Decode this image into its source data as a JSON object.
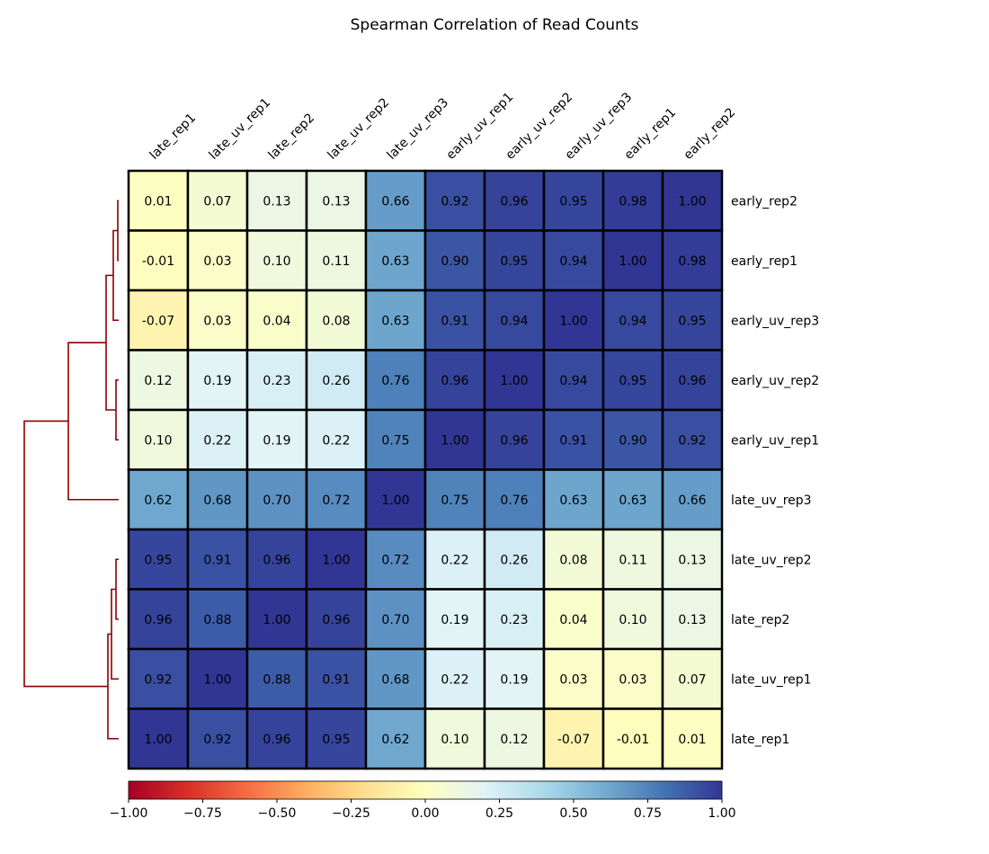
{
  "chart_data": {
    "type": "heatmap",
    "title": "Spearman Correlation of Read Counts",
    "columns": [
      "late_rep1",
      "late_uv_rep1",
      "late_rep2",
      "late_uv_rep2",
      "late_uv_rep3",
      "early_uv_rep1",
      "early_uv_rep2",
      "early_uv_rep3",
      "early_rep1",
      "early_rep2"
    ],
    "rows": [
      "early_rep2",
      "early_rep1",
      "early_uv_rep3",
      "early_uv_rep2",
      "early_uv_rep1",
      "late_uv_rep3",
      "late_uv_rep2",
      "late_rep2",
      "late_uv_rep1",
      "late_rep1"
    ],
    "values": [
      [
        0.01,
        0.07,
        0.13,
        0.13,
        0.66,
        0.92,
        0.96,
        0.95,
        0.98,
        1.0
      ],
      [
        -0.01,
        0.03,
        0.1,
        0.11,
        0.63,
        0.9,
        0.95,
        0.94,
        1.0,
        0.98
      ],
      [
        -0.07,
        0.03,
        0.04,
        0.08,
        0.63,
        0.91,
        0.94,
        1.0,
        0.94,
        0.95
      ],
      [
        0.12,
        0.19,
        0.23,
        0.26,
        0.76,
        0.96,
        1.0,
        0.94,
        0.95,
        0.96
      ],
      [
        0.1,
        0.22,
        0.19,
        0.22,
        0.75,
        1.0,
        0.96,
        0.91,
        0.9,
        0.92
      ],
      [
        0.62,
        0.68,
        0.7,
        0.72,
        1.0,
        0.75,
        0.76,
        0.63,
        0.63,
        0.66
      ],
      [
        0.95,
        0.91,
        0.96,
        1.0,
        0.72,
        0.22,
        0.26,
        0.08,
        0.11,
        0.13
      ],
      [
        0.96,
        0.88,
        1.0,
        0.96,
        0.7,
        0.19,
        0.23,
        0.04,
        0.1,
        0.13
      ],
      [
        0.92,
        1.0,
        0.88,
        0.91,
        0.68,
        0.22,
        0.19,
        0.03,
        0.03,
        0.07
      ],
      [
        1.0,
        0.92,
        0.96,
        0.95,
        0.62,
        0.1,
        0.12,
        -0.07,
        -0.01,
        0.01
      ]
    ],
    "colormap": "RdYlBu",
    "vmin": -1.0,
    "vmax": 1.0,
    "colorbar_ticks": [
      "−1.00",
      "−0.75",
      "−0.50",
      "−0.25",
      "0.00",
      "0.25",
      "0.50",
      "0.75",
      "1.00"
    ],
    "dendrogram_side": "left",
    "dendrogram_color": "#8b0000"
  }
}
